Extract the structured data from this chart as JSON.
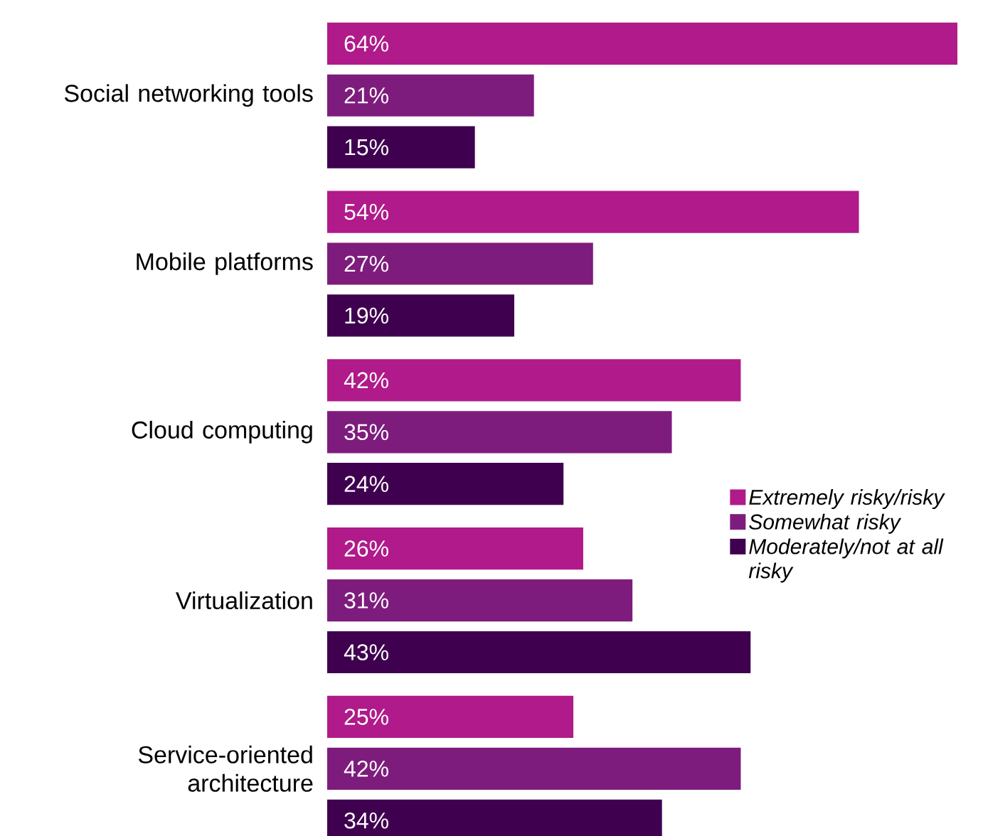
{
  "chart_data": {
    "type": "bar",
    "orientation": "horizontal",
    "categories": [
      "Social networking tools",
      "Mobile platforms",
      "Cloud computing",
      "Virtualization",
      "Service-oriented architecture"
    ],
    "series": [
      {
        "name": "*Extremely risky/risky*",
        "color": "#b01a8a",
        "values": [
          64,
          54,
          42,
          26,
          25
        ],
        "value_labels": [
          "64%",
          "54%",
          "42%",
          "26%",
          "25%"
        ]
      },
      {
        "name": "*Somewhat risky*",
        "color": "#7e1c7d",
        "values": [
          21,
          27,
          35,
          31,
          42
        ],
        "value_labels": [
          "21%",
          "27%",
          "35%",
          "31%",
          "42%"
        ]
      },
      {
        "name": "*Moderately/not at all risky*",
        "color": "#3f0050",
        "values": [
          15,
          19,
          24,
          43,
          34
        ],
        "value_labels": [
          "15%",
          "19%",
          "24%",
          "43%",
          "34%"
        ]
      }
    ],
    "xlim": [
      0,
      64
    ],
    "legend": "right"
  }
}
